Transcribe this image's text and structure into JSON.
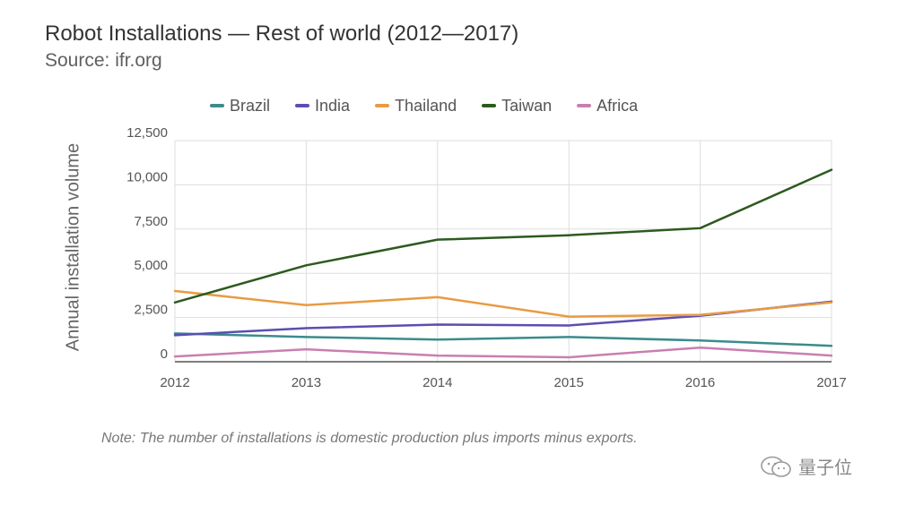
{
  "header": {
    "title": "Robot Installations — Rest of world (2012—2017)",
    "subtitle": "Source: ifr.org"
  },
  "footer": {
    "note": "Note: The number of installations is domestic production plus imports minus exports.",
    "watermark": "量子位"
  },
  "chart_data": {
    "type": "line",
    "title": "Robot Installations — Rest of world (2012—2017)",
    "subtitle": "Source: ifr.org",
    "xlabel": "",
    "ylabel": "Annual installation volume",
    "x": [
      "2012",
      "2013",
      "2014",
      "2015",
      "2016",
      "2017"
    ],
    "yticks": [
      "0",
      "2,500",
      "5,000",
      "7,500",
      "10,000",
      "12,500"
    ],
    "ylim": [
      0,
      12500
    ],
    "grid": true,
    "legend_position": "top",
    "series": [
      {
        "name": "Brazil",
        "color": "#3b8b8d",
        "values": [
          1600,
          1400,
          1250,
          1400,
          1200,
          900
        ]
      },
      {
        "name": "India",
        "color": "#5a4fb0",
        "values": [
          1500,
          1900,
          2100,
          2050,
          2600,
          3400
        ]
      },
      {
        "name": "Thailand",
        "color": "#e89b44",
        "values": [
          4000,
          3200,
          3650,
          2550,
          2650,
          3350
        ]
      },
      {
        "name": "Taiwan",
        "color": "#2d5a1f",
        "values": [
          3350,
          5450,
          6900,
          7150,
          7550,
          10850
        ]
      },
      {
        "name": "Africa",
        "color": "#c97fb0",
        "values": [
          300,
          700,
          350,
          250,
          800,
          350
        ]
      }
    ]
  }
}
